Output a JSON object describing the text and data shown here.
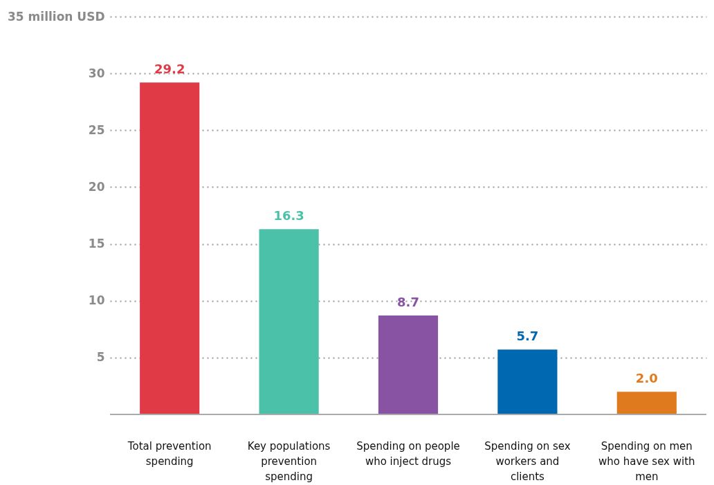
{
  "chart_data": {
    "type": "bar",
    "categories": [
      "Total prevention spending",
      "Key populations prevention spending",
      "Spending on people who inject drugs",
      "Spending on sex workers and clients",
      "Spending on men who have sex with men"
    ],
    "values": [
      29.2,
      16.3,
      8.7,
      5.7,
      2.0
    ],
    "colors": [
      "#e03a47",
      "#4cc1a9",
      "#8853a3",
      "#0067b1",
      "#e07a1f"
    ],
    "value_labels": [
      "29.2",
      "16.3",
      "8.7",
      "5.7",
      "2.0"
    ],
    "ylim": [
      0,
      35
    ],
    "yticks": [
      5,
      10,
      15,
      20,
      25,
      30,
      {
        "value": 35,
        "label": "35 million USD"
      }
    ],
    "grid": "y"
  }
}
